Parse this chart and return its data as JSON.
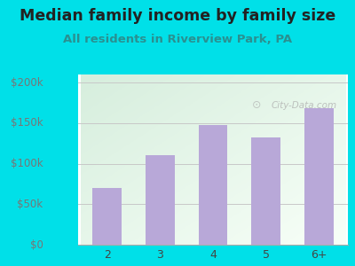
{
  "categories": [
    "2",
    "3",
    "4",
    "5",
    "6+"
  ],
  "values": [
    70000,
    110000,
    148000,
    132000,
    168000
  ],
  "bar_color": "#b8a8d8",
  "title": "Median family income by family size",
  "subtitle": "All residents in Riverview Park, PA",
  "title_fontsize": 12.5,
  "subtitle_fontsize": 9.5,
  "title_color": "#222222",
  "subtitle_color": "#2a9090",
  "ylabel_ticks": [
    0,
    50000,
    100000,
    150000,
    200000
  ],
  "ylabel_labels": [
    "$0",
    "$50k",
    "$100k",
    "$150k",
    "$200k"
  ],
  "ylim": [
    0,
    210000
  ],
  "background_outer": "#00e0e8",
  "background_inner_top_left": "#d6eedd",
  "background_inner_bottom_right": "#f8fff8",
  "grid_color": "#c8c8c8",
  "watermark_text": "City-Data.com",
  "bar_width": 0.55,
  "tick_color": "#777777"
}
